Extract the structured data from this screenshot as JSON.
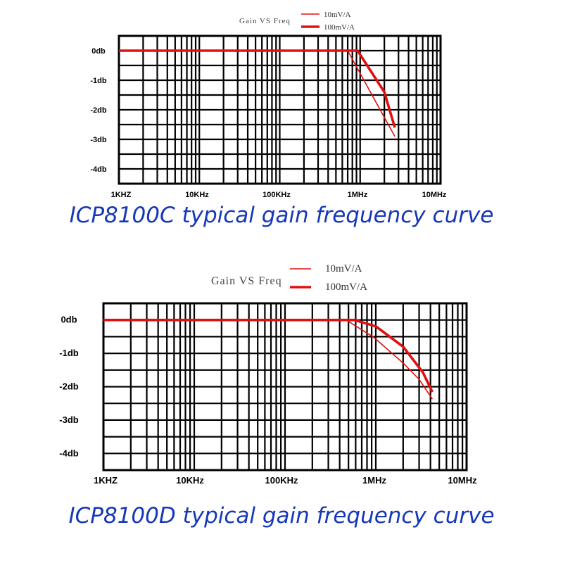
{
  "chart_data": [
    {
      "type": "line",
      "title": "Gain VS Freq",
      "caption": "ICP8100C typical gain frequency curve",
      "x_scale": "log",
      "xlim": [
        1000,
        10000000
      ],
      "ylim": [
        -4.5,
        0.5
      ],
      "grid": true,
      "legend": "top-right",
      "x_ticks": [
        {
          "v": 1000,
          "label": "1KHZ"
        },
        {
          "v": 10000,
          "label": "10KHz"
        },
        {
          "v": 100000,
          "label": "100KHz"
        },
        {
          "v": 1000000,
          "label": "1MHz"
        },
        {
          "v": 10000000,
          "label": "10MHz"
        }
      ],
      "y_ticks": [
        {
          "v": 0,
          "label": "0db"
        },
        {
          "v": -1,
          "label": "-1db"
        },
        {
          "v": -2,
          "label": "-2db"
        },
        {
          "v": -3,
          "label": "-3db"
        },
        {
          "v": -4,
          "label": "-4db"
        }
      ],
      "series": [
        {
          "name": "10mV/A",
          "color": "#e01010",
          "points": [
            [
              1000,
              0
            ],
            [
              700000,
              0
            ],
            [
              1900000,
              -2.15
            ],
            [
              2700000,
              -2.9
            ]
          ]
        },
        {
          "name": "100mV/A",
          "color": "#e01010",
          "points": [
            [
              1000,
              0
            ],
            [
              930000,
              0
            ],
            [
              2000000,
              -1.4
            ],
            [
              2700000,
              -2.6
            ]
          ]
        }
      ]
    },
    {
      "type": "line",
      "title": "Gain VS Freq",
      "caption": "ICP8100D typical gain frequency curve",
      "x_scale": "log",
      "xlim": [
        1000,
        10000000
      ],
      "ylim": [
        -4.5,
        0.5
      ],
      "grid": true,
      "legend": "top-right",
      "x_ticks": [
        {
          "v": 1000,
          "label": "1KHZ"
        },
        {
          "v": 10000,
          "label": "10KHz"
        },
        {
          "v": 100000,
          "label": "100KHz"
        },
        {
          "v": 1000000,
          "label": "1MHz"
        },
        {
          "v": 10000000,
          "label": "10MHz"
        }
      ],
      "y_ticks": [
        {
          "v": 0,
          "label": "0db"
        },
        {
          "v": -1,
          "label": "-1db"
        },
        {
          "v": -2,
          "label": "-2db"
        },
        {
          "v": -3,
          "label": "-3db"
        },
        {
          "v": -4,
          "label": "-4db"
        }
      ],
      "series": [
        {
          "name": "10mV/A",
          "color": "#e01010",
          "points": [
            [
              1000,
              0
            ],
            [
              473000,
              0
            ],
            [
              950000,
              -0.52
            ],
            [
              2000000,
              -1.29
            ],
            [
              3000000,
              -1.78
            ],
            [
              4200000,
              -2.37
            ]
          ]
        },
        {
          "name": "100mV/A",
          "color": "#e01010",
          "points": [
            [
              1000,
              0
            ],
            [
              580000,
              0
            ],
            [
              1000000,
              -0.19
            ],
            [
              2000000,
              -0.8
            ],
            [
              3300000,
              -1.57
            ],
            [
              4200000,
              -2.16
            ]
          ]
        }
      ]
    }
  ]
}
